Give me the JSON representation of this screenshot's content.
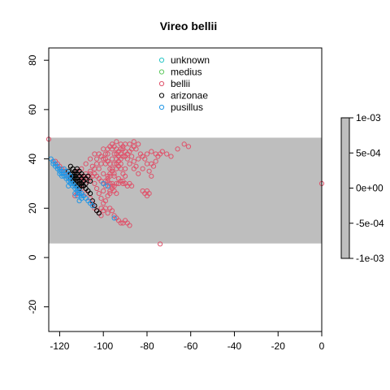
{
  "chart_data": {
    "type": "scatter",
    "title": "Vireo bellii",
    "xlabel": "",
    "ylabel": "",
    "xlim": [
      -125,
      0
    ],
    "ylim": [
      -30,
      85
    ],
    "xticks": [
      -120,
      -100,
      -80,
      -60,
      -40,
      -20,
      0
    ],
    "yticks": [
      -20,
      0,
      20,
      40,
      60,
      80
    ],
    "xtick_labels": [
      "-120",
      "-100",
      "-80",
      "-60",
      "-40",
      "-20",
      "0"
    ],
    "ytick_labels": [
      "-20",
      "0",
      "20",
      "40",
      "60",
      "80"
    ],
    "grid": false,
    "legend_position": "top-center",
    "band": {
      "lat_min": 5.7,
      "lat_max": 48.6,
      "color": "#bebebe"
    },
    "series": [
      {
        "name": "unknown",
        "color": "#28c5c5",
        "marker": "open-circle",
        "points": []
      },
      {
        "name": "medius",
        "color": "#5ec85e",
        "marker": "open-circle",
        "points": []
      },
      {
        "name": "bellii",
        "color": "#df536b",
        "marker": "open-circle",
        "points": [
          [
            -125,
            48
          ],
          [
            -119,
            36
          ],
          [
            -117,
            34
          ],
          [
            -115,
            33
          ],
          [
            -112,
            32
          ],
          [
            -110,
            31
          ],
          [
            -108,
            34
          ],
          [
            -106,
            35
          ],
          [
            -105,
            33
          ],
          [
            -104,
            30
          ],
          [
            -103,
            28
          ],
          [
            -102,
            26
          ],
          [
            -101,
            24
          ],
          [
            -100,
            22
          ],
          [
            -99,
            20
          ],
          [
            -98,
            18
          ],
          [
            -97,
            26
          ],
          [
            -96,
            30
          ],
          [
            -95,
            33
          ],
          [
            -94,
            36
          ],
          [
            -93,
            39
          ],
          [
            -92,
            42
          ],
          [
            -91,
            44
          ],
          [
            -90,
            43
          ],
          [
            -89,
            40
          ],
          [
            -88,
            38
          ],
          [
            -87,
            41
          ],
          [
            -86,
            39
          ],
          [
            -85,
            37
          ],
          [
            -84,
            40
          ],
          [
            -83,
            42
          ],
          [
            -82,
            41
          ],
          [
            -81,
            40
          ],
          [
            -80,
            38
          ],
          [
            -79,
            35
          ],
          [
            -78,
            33
          ],
          [
            -76,
            39
          ],
          [
            -75,
            41
          ],
          [
            -73,
            43
          ],
          [
            -71,
            42
          ],
          [
            -69,
            41
          ],
          [
            -66,
            44
          ],
          [
            -100,
            44
          ],
          [
            -98,
            42
          ],
          [
            -96,
            40
          ],
          [
            -94,
            40
          ],
          [
            -92,
            38
          ],
          [
            -90,
            36
          ],
          [
            -99,
            38
          ],
          [
            -97,
            36
          ],
          [
            -95,
            34
          ],
          [
            -93,
            32
          ],
          [
            -91,
            30
          ],
          [
            -89,
            29
          ],
          [
            -100,
            34
          ],
          [
            -98,
            32
          ],
          [
            -97,
            30
          ],
          [
            -96,
            28
          ],
          [
            -95,
            27
          ],
          [
            -94,
            26
          ],
          [
            -102,
            36
          ],
          [
            -101,
            38
          ],
          [
            -100,
            40
          ],
          [
            -99,
            42
          ],
          [
            -98,
            44
          ],
          [
            -97,
            45
          ],
          [
            -96,
            46
          ],
          [
            -95,
            45
          ],
          [
            -94,
            44
          ],
          [
            -93,
            43
          ],
          [
            -92,
            44
          ],
          [
            -91,
            45
          ],
          [
            -96,
            44
          ],
          [
            -95,
            42
          ],
          [
            -94,
            42
          ],
          [
            -93,
            41
          ],
          [
            -92,
            40
          ],
          [
            -91,
            41
          ],
          [
            -90,
            41
          ],
          [
            -89,
            42
          ],
          [
            -88,
            43
          ],
          [
            -87,
            44
          ],
          [
            -86,
            45
          ],
          [
            -85,
            44
          ],
          [
            -103,
            38
          ],
          [
            -104,
            36
          ],
          [
            -105,
            37
          ],
          [
            -106,
            32
          ],
          [
            -107,
            31
          ],
          [
            -108,
            30
          ],
          [
            -109,
            29
          ],
          [
            -110,
            28
          ],
          [
            -111,
            27
          ],
          [
            -112,
            26
          ],
          [
            -113,
            25
          ],
          [
            -110,
            26
          ],
          [
            -108,
            26
          ],
          [
            -106,
            24
          ],
          [
            -105,
            22
          ],
          [
            -104,
            20
          ],
          [
            -103,
            19
          ],
          [
            -102,
            18
          ],
          [
            -101,
            20
          ],
          [
            -100,
            27
          ],
          [
            -99,
            29
          ],
          [
            -98,
            31
          ],
          [
            -97,
            33
          ],
          [
            -96,
            35
          ],
          [
            -97,
            38
          ],
          [
            -98,
            39
          ],
          [
            -99,
            40
          ],
          [
            -101,
            41
          ],
          [
            -102,
            42
          ],
          [
            -103,
            40
          ],
          [
            -88,
            30
          ],
          [
            -87,
            29
          ],
          [
            -90,
            30
          ],
          [
            -91,
            31
          ],
          [
            -92,
            31
          ],
          [
            -93,
            30
          ],
          [
            -94,
            30
          ],
          [
            -95,
            29
          ],
          [
            -96,
            29
          ],
          [
            -97,
            27
          ],
          [
            -98,
            25
          ],
          [
            -99,
            23
          ],
          [
            -100,
            19
          ],
          [
            -101,
            17
          ],
          [
            -97,
            20
          ],
          [
            -96,
            19
          ],
          [
            -95,
            17
          ],
          [
            -94,
            16
          ],
          [
            -93,
            15
          ],
          [
            -92,
            14
          ],
          [
            -91,
            14
          ],
          [
            -90,
            15
          ],
          [
            -89,
            14
          ],
          [
            -88,
            13
          ],
          [
            -80,
            27
          ],
          [
            -81,
            26
          ],
          [
            -82,
            27
          ],
          [
            -80,
            25
          ],
          [
            -79,
            26
          ],
          [
            -74,
            5.5
          ],
          [
            -63,
            46
          ],
          [
            -61,
            45
          ],
          [
            0,
            30
          ],
          [
            -86,
            36
          ],
          [
            -84,
            34
          ],
          [
            -82,
            36
          ],
          [
            -78,
            38
          ],
          [
            -77,
            37
          ],
          [
            -80,
            42
          ],
          [
            -78,
            43
          ],
          [
            -76,
            42
          ],
          [
            -74,
            42
          ],
          [
            -90,
            46
          ],
          [
            -88,
            46
          ],
          [
            -86,
            47
          ],
          [
            -84,
            46
          ],
          [
            -92,
            46
          ],
          [
            -94,
            47
          ],
          [
            -104,
            42
          ],
          [
            -106,
            40
          ],
          [
            -108,
            38
          ],
          [
            -110,
            36
          ],
          [
            -112,
            35
          ],
          [
            -114,
            34
          ],
          [
            -116,
            33
          ],
          [
            -118,
            35
          ],
          [
            -120,
            37
          ],
          [
            -121,
            38
          ],
          [
            -122,
            39
          ],
          [
            -110,
            33
          ],
          [
            -109,
            32
          ],
          [
            -107,
            33
          ],
          [
            -106,
            34
          ],
          [
            -104,
            34
          ],
          [
            -103,
            33
          ],
          [
            -102,
            32
          ],
          [
            -101,
            31
          ],
          [
            -100,
            30
          ],
          [
            -99,
            31
          ],
          [
            -98,
            33
          ],
          [
            -97,
            34
          ],
          [
            -96,
            36
          ],
          [
            -95,
            38
          ],
          [
            -94,
            38
          ],
          [
            -93,
            37
          ],
          [
            -92,
            36
          ],
          [
            -91,
            34
          ],
          [
            -90,
            33
          ]
        ]
      },
      {
        "name": "arizonae",
        "color": "#000000",
        "marker": "open-circle",
        "points": [
          [
            -115,
            37
          ],
          [
            -114,
            36
          ],
          [
            -113,
            35
          ],
          [
            -112,
            34
          ],
          [
            -111,
            33
          ],
          [
            -110,
            32
          ],
          [
            -114,
            34
          ],
          [
            -113,
            33
          ],
          [
            -112,
            32
          ],
          [
            -111,
            31
          ],
          [
            -110,
            30
          ],
          [
            -109,
            29
          ],
          [
            -108,
            28
          ],
          [
            -107,
            27
          ],
          [
            -106,
            26
          ],
          [
            -105,
            23
          ],
          [
            -104,
            21
          ],
          [
            -103,
            19
          ],
          [
            -102,
            18
          ],
          [
            -116,
            35
          ],
          [
            -115,
            34
          ],
          [
            -114,
            33
          ],
          [
            -113,
            32
          ],
          [
            -112,
            31
          ],
          [
            -111,
            30
          ],
          [
            -110,
            34
          ],
          [
            -109,
            33
          ],
          [
            -108,
            32
          ],
          [
            -107,
            33
          ],
          [
            -106,
            31
          ],
          [
            -111,
            35
          ],
          [
            -112,
            36
          ],
          [
            -113,
            34
          ],
          [
            -114,
            32
          ],
          [
            -109,
            31
          ],
          [
            -108,
            30
          ],
          [
            -110,
            29
          ],
          [
            -111,
            28
          ],
          [
            -112,
            29
          ],
          [
            -113,
            30
          ],
          [
            -114,
            31
          ],
          [
            -115,
            32
          ]
        ]
      },
      {
        "name": "pusillus",
        "color": "#2297e6",
        "marker": "open-circle",
        "points": [
          [
            -124,
            40
          ],
          [
            -123,
            39
          ],
          [
            -122,
            38
          ],
          [
            -121,
            37
          ],
          [
            -120,
            36
          ],
          [
            -119,
            35
          ],
          [
            -118,
            34
          ],
          [
            -117,
            33
          ],
          [
            -116,
            32
          ],
          [
            -115,
            31
          ],
          [
            -114,
            30
          ],
          [
            -113,
            29
          ],
          [
            -112,
            28
          ],
          [
            -111,
            27
          ],
          [
            -110,
            26
          ],
          [
            -109,
            25
          ],
          [
            -108,
            24
          ],
          [
            -107,
            23
          ],
          [
            -123,
            38
          ],
          [
            -122,
            37
          ],
          [
            -121,
            36
          ],
          [
            -120,
            35
          ],
          [
            -119,
            34
          ],
          [
            -118,
            33
          ],
          [
            -117,
            32
          ],
          [
            -116,
            31
          ],
          [
            -115,
            30
          ],
          [
            -114,
            29
          ],
          [
            -113,
            28
          ],
          [
            -112,
            27
          ],
          [
            -111,
            26
          ],
          [
            -110,
            25
          ],
          [
            -118,
            36
          ],
          [
            -117,
            35
          ],
          [
            -116,
            34
          ],
          [
            -115,
            33
          ],
          [
            -110,
            24
          ],
          [
            -111,
            23
          ],
          [
            -112,
            25
          ],
          [
            -113,
            26
          ],
          [
            -106,
            22
          ],
          [
            -105,
            21
          ],
          [
            -95,
            16
          ],
          [
            -100,
            30
          ],
          [
            -98,
            29
          ],
          [
            -120,
            34
          ],
          [
            -119,
            33
          ],
          [
            -116,
            29
          ]
        ]
      }
    ],
    "colorbar": {
      "labels": [
        "1e-03",
        "5e-04",
        "0e+00",
        "-5e-04",
        "-1e-03"
      ],
      "values": [
        0.001,
        0.0005,
        0,
        -0.0005,
        -0.001
      ],
      "color": "#bebebe"
    }
  }
}
